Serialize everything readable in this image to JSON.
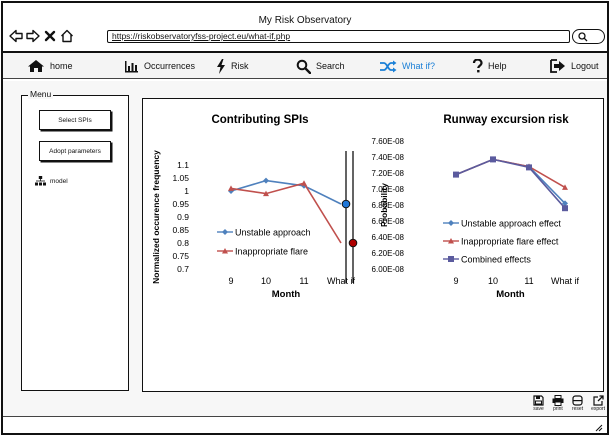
{
  "window": {
    "title": "My Risk Observatory"
  },
  "browser": {
    "url": "https://riskobservatoryfss-project.eu/what-if.php"
  },
  "menubar": {
    "items": [
      {
        "label": "home",
        "icon": "home-icon"
      },
      {
        "label": "Occurrences",
        "icon": "bar-chart-icon"
      },
      {
        "label": "Risk",
        "icon": "lightning-icon"
      },
      {
        "label": "Search",
        "icon": "search-icon"
      },
      {
        "label": "What if?",
        "icon": "shuffle-icon",
        "active": true
      },
      {
        "label": "Help",
        "icon": "question-icon"
      },
      {
        "label": "Logout",
        "icon": "logout-icon"
      }
    ]
  },
  "sidebar": {
    "legend": "Menu",
    "buttons": [
      "Select SPIs",
      "Adopt parameters"
    ],
    "link": "model"
  },
  "actions": {
    "save": "save",
    "print": "print",
    "reset": "reset",
    "export": "export"
  },
  "colors": {
    "blue": "#4f81bd",
    "red": "#c0504d",
    "purple": "#5b5b9e",
    "dot_blue": "#1f77d8",
    "dot_red": "#b00000",
    "accent": "#1a7fd6"
  },
  "chart_data": [
    {
      "type": "line",
      "title": "Contributing SPIs",
      "xlabel": "Month",
      "ylabel": "Normalized occurence frequency",
      "categories": [
        "9",
        "10",
        "11",
        "What if"
      ],
      "ylim": [
        0.7,
        1.1
      ],
      "yticks": [
        "1.1",
        "1.05",
        "1",
        "0.95",
        "0.9",
        "0.85",
        "0.8",
        "0.75",
        "0.7"
      ],
      "legend_position": "bottom-left",
      "series": [
        {
          "name": "Unstable approach",
          "values": [
            1.0,
            1.04,
            1.02,
            0.95
          ]
        },
        {
          "name": "Inappropriate flare",
          "values": [
            1.01,
            0.99,
            1.03,
            0.8
          ]
        }
      ],
      "whatif_dots": [
        0.95,
        0.8
      ]
    },
    {
      "type": "line",
      "title": "Runway excursion risk",
      "xlabel": "Month",
      "ylabel": "Probability",
      "categories": [
        "9",
        "10",
        "11",
        "What if"
      ],
      "ylim": [
        6e-08,
        7.6e-08
      ],
      "yticks": [
        "7.60E-08",
        "7.40E-08",
        "7.20E-08",
        "7.00E-08",
        "6.80E-08",
        "6.60E-08",
        "6.40E-08",
        "6.20E-08",
        "6.00E-08"
      ],
      "legend_position": "bottom-left",
      "series": [
        {
          "name": "Unstable approach effect",
          "values": [
            7.18e-08,
            7.37e-08,
            7.28e-08,
            6.82e-08
          ]
        },
        {
          "name": "Inappropriate flare effect",
          "values": [
            7.18e-08,
            7.37e-08,
            7.28e-08,
            7.02e-08
          ]
        },
        {
          "name": "Combined effects",
          "values": [
            7.18e-08,
            7.37e-08,
            7.27e-08,
            6.76e-08
          ]
        }
      ]
    }
  ]
}
